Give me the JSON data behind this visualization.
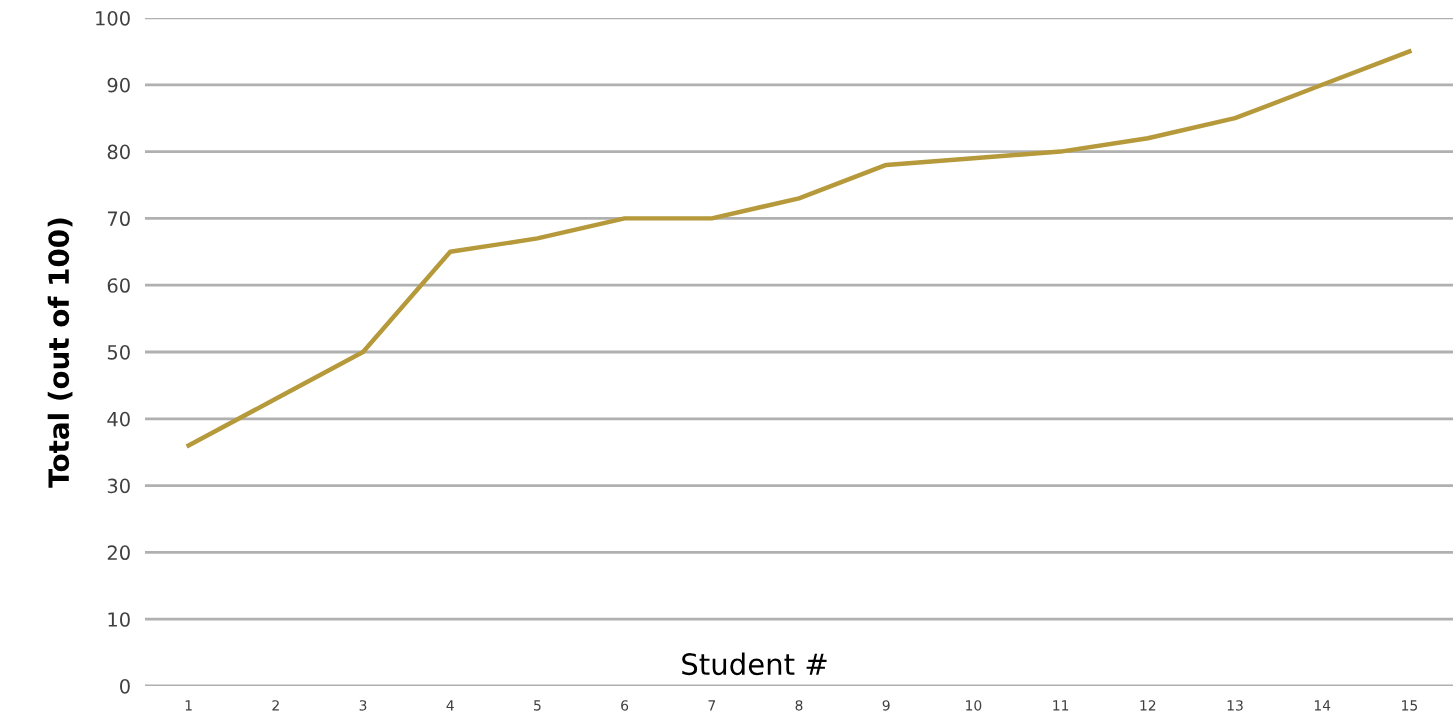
{
  "chart_data": {
    "type": "line",
    "xlabel": "Student #",
    "ylabel": "Total (out of 100)",
    "categories": [
      "1",
      "2",
      "3",
      "4",
      "5",
      "6",
      "7",
      "8",
      "9",
      "10",
      "11",
      "12",
      "13",
      "14",
      "15"
    ],
    "series": [
      {
        "color": "#b5993a",
        "values": [
          36,
          43,
          50,
          65,
          67,
          70,
          70,
          73,
          78,
          79,
          80,
          82,
          85,
          90,
          95
        ]
      }
    ],
    "ylim": [
      0,
      100
    ],
    "yticks": [
      0,
      10,
      20,
      30,
      40,
      50,
      60,
      70,
      80,
      90,
      100
    ],
    "grid": "y",
    "marker": "none",
    "line_style": "solid"
  }
}
